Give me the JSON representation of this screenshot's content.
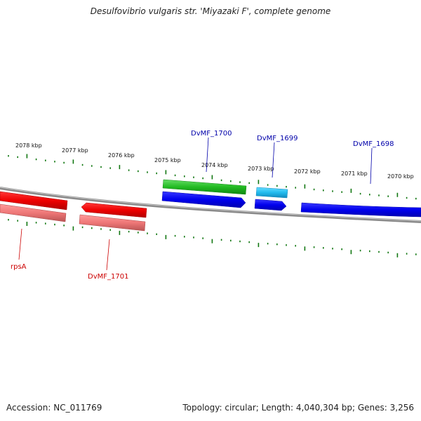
{
  "title": "Desulfovibrio vulgaris str. 'Miyazaki F', complete genome",
  "footer": {
    "accession": "Accession: NC_011769",
    "summary": "Topology: circular; Length: 4,040,304 bp; Genes: 3,256"
  },
  "colors": {
    "backbone": "#8a8a8a",
    "forward_cds": "#0000ee",
    "forward_gene": "#22bb22",
    "forward_gene_light": "#22bbee",
    "reverse_cds": "#ee0000",
    "reverse_gene": "#ee7777",
    "ticks": "#117711",
    "forward_label": "#0000aa",
    "reverse_label": "#cc0000"
  },
  "scale_labels": [
    "2078 kbp",
    "2077 kbp",
    "2076 kbp",
    "2075 kbp",
    "2074 kbp",
    "2073 kbp",
    "2072 kbp",
    "2071 kbp",
    "2070 kbp"
  ],
  "forward_features": [
    {
      "label": "DvMF_1700",
      "type": "gene",
      "color_key": "forward_gene"
    },
    {
      "label": "DvMF_1699",
      "type": "gene",
      "color_key": "forward_gene_light"
    },
    {
      "label": "DvMF_1698",
      "type": "cds",
      "color_key": "forward_cds"
    }
  ],
  "reverse_features": [
    {
      "label": "rpsA",
      "type": "cds",
      "color_key": "reverse_cds"
    },
    {
      "label": "DvMF_1701",
      "type": "cds",
      "color_key": "reverse_cds"
    }
  ]
}
